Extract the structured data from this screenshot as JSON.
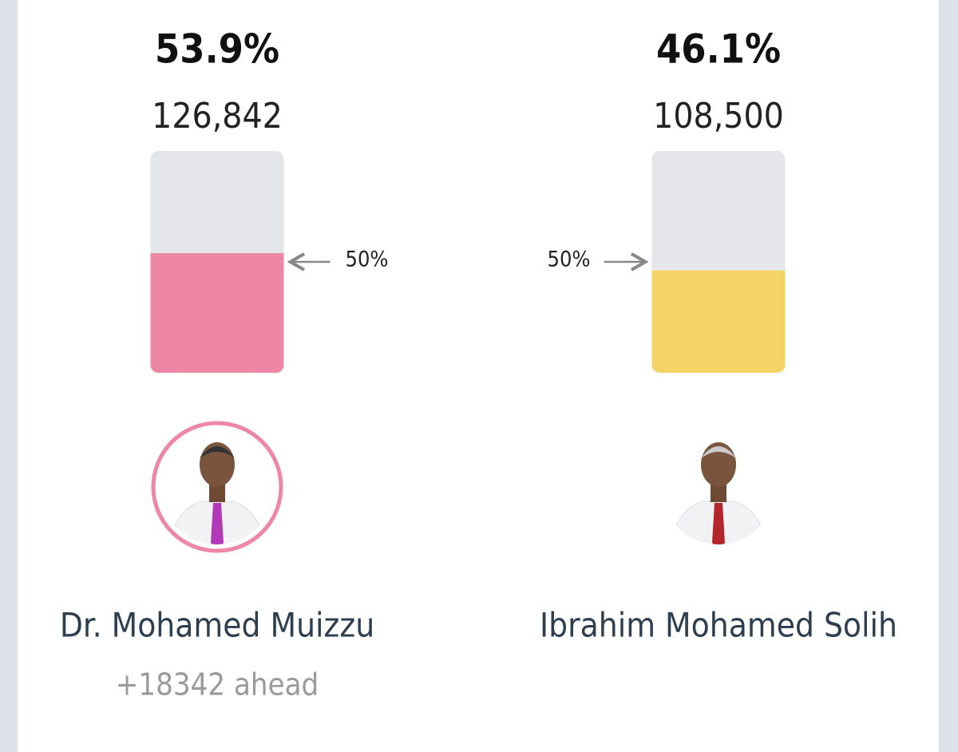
{
  "chart_data": {
    "type": "bar",
    "categories": [
      "Dr. Mohamed Muizzu",
      "Ibrahim Mohamed Solih"
    ],
    "values": [
      53.9,
      46.1
    ],
    "value_labels": [
      "53.9%",
      "46.1%"
    ],
    "votes": [
      "126,842",
      "108,500"
    ],
    "colors": [
      "#ee86a6",
      "#f5d466"
    ],
    "ylim": [
      0,
      100
    ],
    "threshold": {
      "value": 50,
      "label": "50%"
    },
    "annotation": "+18342 ahead"
  }
}
